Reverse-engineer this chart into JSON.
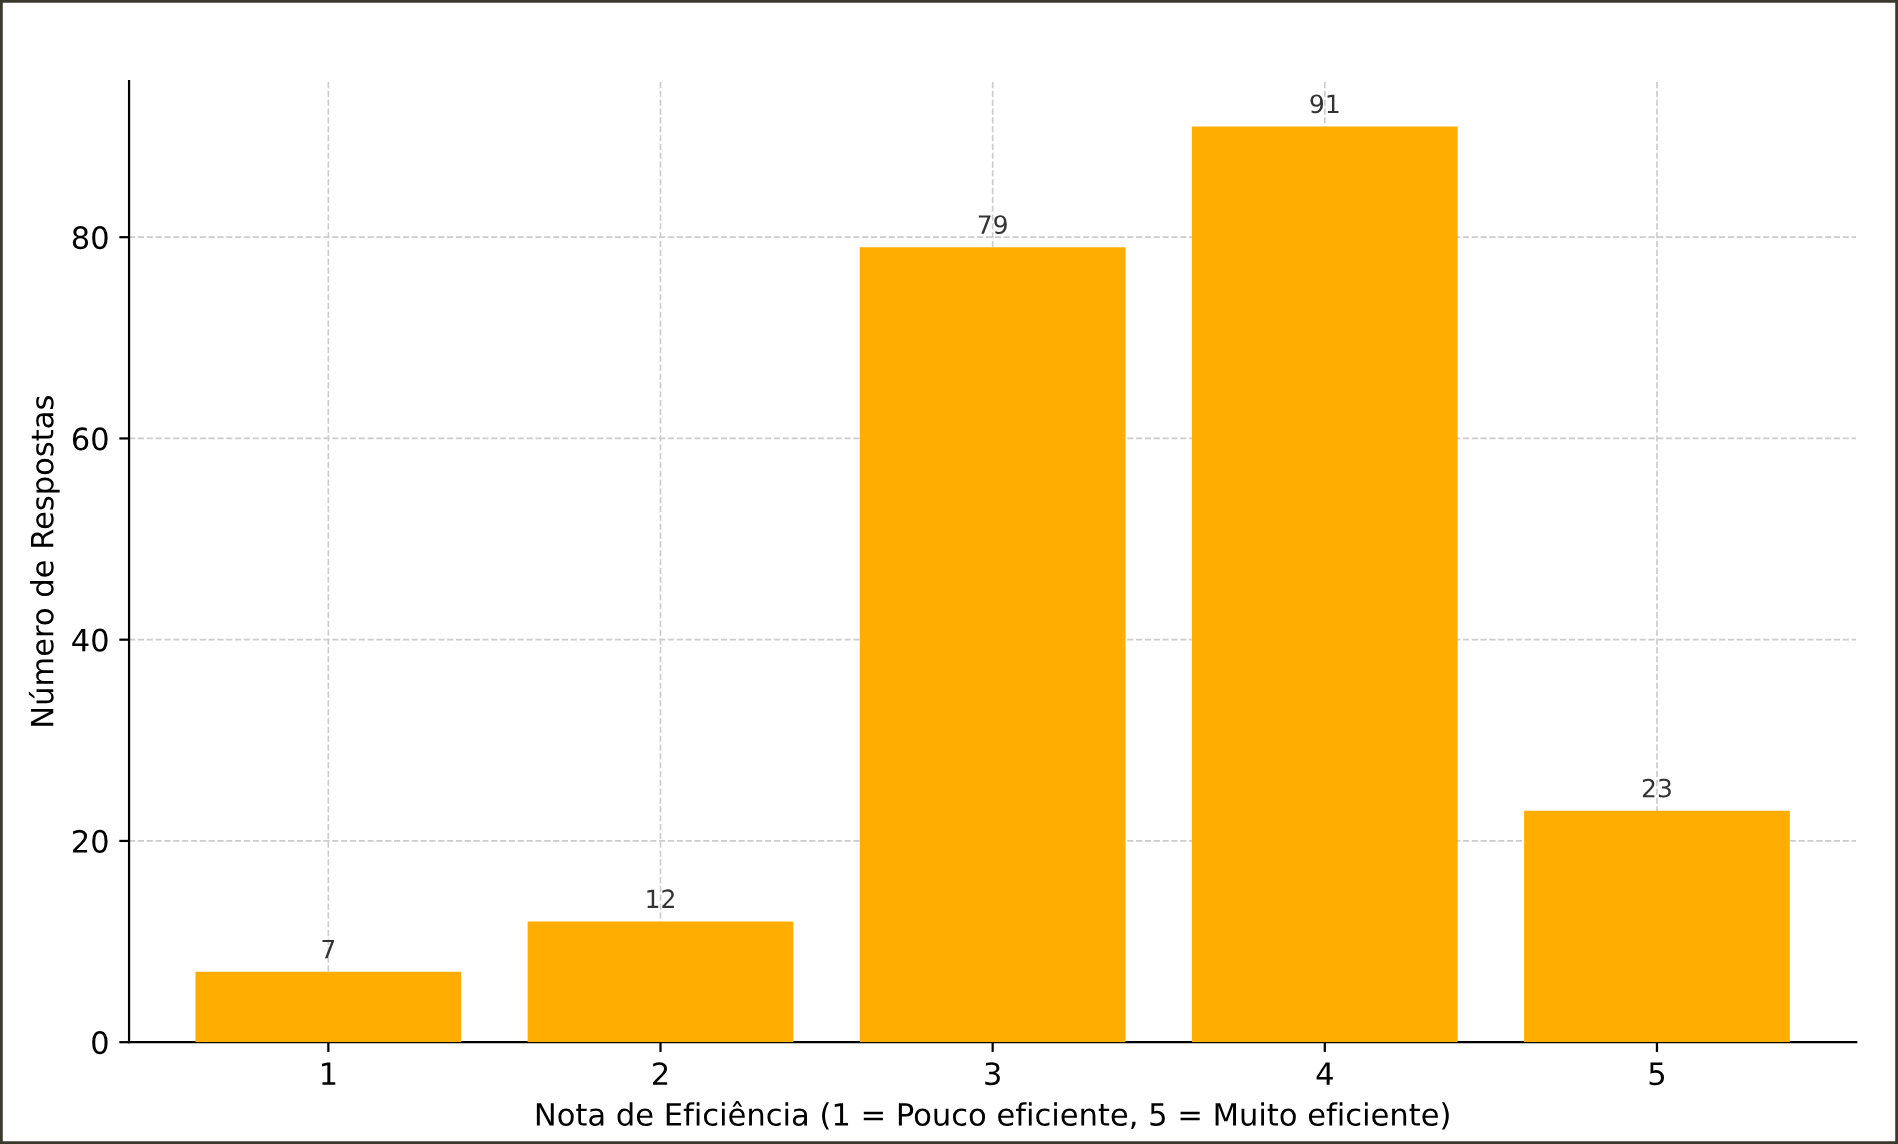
{
  "chart_data": {
    "type": "bar",
    "xlabel": "Nota de Eficiência (1 = Pouco eficiente, 5 = Muito eficiente)",
    "ylabel": "Número de Respostas",
    "categories": [
      "1",
      "2",
      "3",
      "4",
      "5"
    ],
    "values": [
      7,
      12,
      79,
      91,
      23
    ],
    "color": "#ffad00",
    "ylim": [
      0,
      95.5
    ],
    "yticks": [
      0,
      20,
      40,
      60,
      80
    ],
    "grid": true,
    "data_labels": true
  }
}
